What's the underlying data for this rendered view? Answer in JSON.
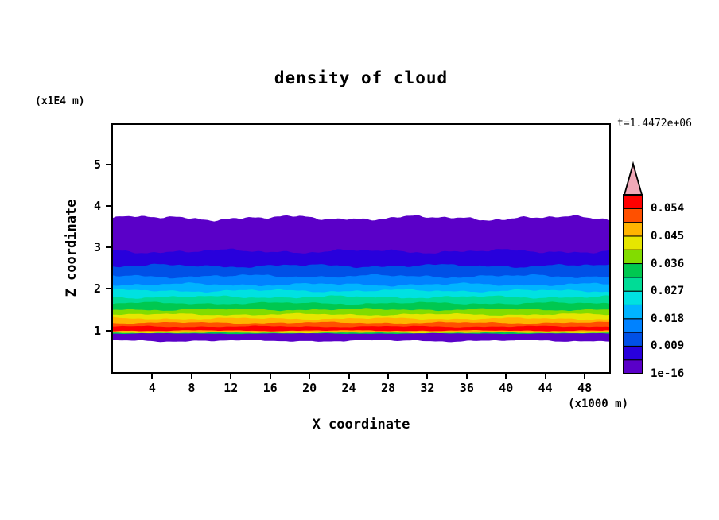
{
  "chart_data": {
    "type": "contour",
    "title": "density of cloud",
    "time_annotation": "t=1.4472e+06",
    "xlabel": "X coordinate",
    "x_unit": "(x1000 m)",
    "ylabel": "Z coordinate",
    "y_unit": "(x1E4 m)",
    "x_range": [
      0,
      50.5
    ],
    "y_range": [
      0,
      5.95
    ],
    "x_ticks": [
      4,
      8,
      12,
      16,
      20,
      24,
      28,
      32,
      36,
      40,
      44,
      48
    ],
    "y_ticks": [
      1,
      2,
      3,
      4,
      5
    ],
    "grid": false,
    "legend_position": "right-colorbar",
    "value_levels": [
      "1e-16",
      "0.009",
      "0.018",
      "0.027",
      "0.036",
      "0.045",
      "0.054"
    ],
    "colorbar": {
      "segment_colors": [
        "#5a00c8",
        "#2800dc",
        "#0050e6",
        "#0082ff",
        "#00b4ff",
        "#00e1e1",
        "#00dc96",
        "#00c850",
        "#82dc00",
        "#e6e600",
        "#ffb400",
        "#ff5000",
        "#ff0000"
      ],
      "labels_bottom_to_top": [
        "1e-16",
        "0.009",
        "0.018",
        "0.027",
        "0.036",
        "0.045",
        "0.054"
      ],
      "label_every_n_segments": 2,
      "arrow_color": "#f0a8b8",
      "border_color": "#000000"
    },
    "bands": {
      "comment": "horizontal cloud-density layers; boundaries listed top to bottom in Z (x1E4 m) units, colors[i] fills between boundary i and i+1; region above first and below last boundary is white (no cloud)",
      "boundaries": [
        {
          "z": 3.7,
          "amp": 0.07
        },
        {
          "z": 2.9,
          "amp": 0.06
        },
        {
          "z": 2.55,
          "amp": 0.05
        },
        {
          "z": 2.3,
          "amp": 0.05
        },
        {
          "z": 2.1,
          "amp": 0.045
        },
        {
          "z": 1.95,
          "amp": 0.04
        },
        {
          "z": 1.8,
          "amp": 0.04
        },
        {
          "z": 1.65,
          "amp": 0.035
        },
        {
          "z": 1.5,
          "amp": 0.035
        },
        {
          "z": 1.38,
          "amp": 0.03
        },
        {
          "z": 1.28,
          "amp": 0.03
        },
        {
          "z": 1.18,
          "amp": 0.025
        },
        {
          "z": 1.09,
          "amp": 0.02
        },
        {
          "z": 0.99,
          "amp": 0.015
        },
        {
          "z": 0.965,
          "amp": 0.012
        },
        {
          "z": 0.94,
          "amp": 0.012
        },
        {
          "z": 0.92,
          "amp": 0.012
        },
        {
          "z": 0.76,
          "amp": 0.03
        }
      ],
      "colors": [
        "#5a00c8",
        "#2800dc",
        "#0050e6",
        "#0082ff",
        "#00b4ff",
        "#00e1e1",
        "#00dc96",
        "#00c850",
        "#82dc00",
        "#e6e600",
        "#ffb400",
        "#ff5000",
        "#ff0000",
        "#ffb400",
        "#e6e600",
        "#00c850",
        "#5a00c8"
      ]
    },
    "colors": {
      "background": "#ffffff",
      "axis": "#000000",
      "text": "#000000"
    }
  }
}
